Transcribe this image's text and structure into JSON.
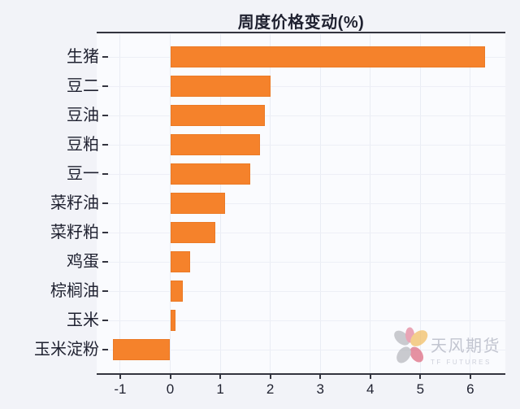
{
  "page": {
    "background": "#f2f3f8"
  },
  "chart_data": {
    "type": "bar",
    "orientation": "horizontal",
    "title": "周度价格变动(%)",
    "categories": [
      "生猪",
      "豆二",
      "豆油",
      "豆粕",
      "豆一",
      "菜籽油",
      "菜籽粕",
      "鸡蛋",
      "棕榈油",
      "玉米",
      "玉米淀粉"
    ],
    "values": [
      6.3,
      2.0,
      1.9,
      1.8,
      1.6,
      1.1,
      0.9,
      0.4,
      0.25,
      0.1,
      -1.15
    ],
    "xlabel": "",
    "ylabel": "",
    "xlim": [
      -1.47,
      6.7
    ],
    "xticks": [
      -1,
      0,
      1,
      2,
      3,
      4,
      5,
      6
    ],
    "grid": true,
    "legend": "none",
    "bar_color": "#F5822B",
    "axis_color": "#33343F",
    "text_color": "#1F2130"
  },
  "watermark": {
    "logo": "tf-flower-icon",
    "name": "天风期货",
    "subtitle": "TF FUTURES"
  }
}
